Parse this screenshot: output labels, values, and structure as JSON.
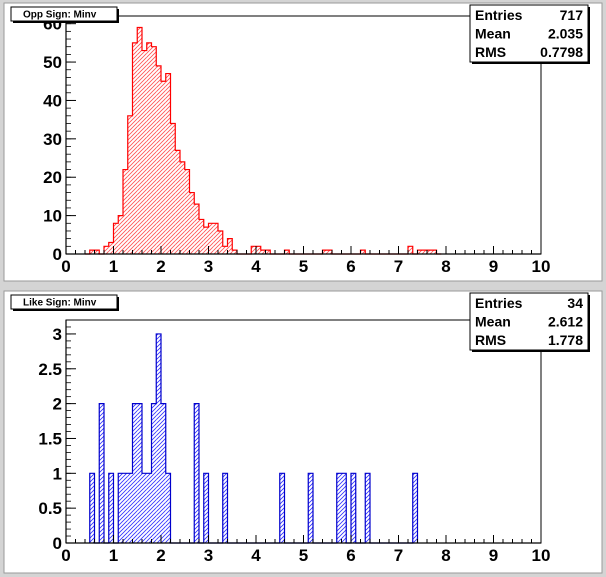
{
  "chart_data": [
    {
      "type": "bar",
      "histogram": true,
      "title": "Opp Sign: Minv",
      "color": "#ff0000",
      "fill_color": "#ffb0b0",
      "bin_width": 0.1,
      "xlim": [
        0,
        10
      ],
      "ylim": [
        0,
        62
      ],
      "xticks": [
        "0",
        "1",
        "2",
        "3",
        "4",
        "5",
        "6",
        "7",
        "8",
        "9",
        "10"
      ],
      "yticks": [
        "0",
        "10",
        "20",
        "30",
        "40",
        "50",
        "60"
      ],
      "x": [
        0.4,
        0.5,
        0.6,
        0.7,
        0.8,
        0.9,
        1.0,
        1.1,
        1.2,
        1.3,
        1.4,
        1.5,
        1.6,
        1.7,
        1.8,
        1.9,
        2.0,
        2.1,
        2.2,
        2.3,
        2.4,
        2.5,
        2.6,
        2.7,
        2.8,
        2.9,
        3.0,
        3.1,
        3.2,
        3.3,
        3.4,
        3.5,
        3.6,
        3.7,
        3.8,
        3.9,
        4.0,
        4.1,
        4.2,
        4.3,
        4.4,
        4.5,
        4.6,
        4.7,
        4.8,
        4.9,
        5.0,
        5.1,
        5.2,
        5.3,
        5.4,
        5.5,
        5.6,
        5.7,
        5.8,
        5.9,
        6.0,
        6.1,
        6.2,
        6.3,
        6.4,
        6.5,
        6.6,
        6.7,
        6.8,
        6.9,
        7.0,
        7.1,
        7.2,
        7.3,
        7.4,
        7.5,
        7.6,
        7.7,
        7.8
      ],
      "values": [
        0,
        1,
        1,
        0,
        2,
        3,
        8,
        10,
        22,
        36,
        55,
        59,
        53,
        55,
        54,
        49,
        45,
        47,
        34,
        27,
        24,
        22,
        16,
        13,
        9,
        7,
        8,
        8,
        6,
        2,
        4,
        1,
        0,
        0,
        0,
        2,
        2,
        1,
        1,
        0,
        0,
        0,
        1,
        0,
        0,
        0,
        0,
        0,
        0,
        0,
        1,
        1,
        0,
        0,
        0,
        0,
        0,
        0,
        1,
        0,
        0,
        0,
        0,
        0,
        0,
        0,
        0,
        0,
        2,
        0,
        1,
        1,
        1,
        1,
        0
      ],
      "stats": [
        {
          "label": "Entries",
          "value": "717"
        },
        {
          "label": "Mean",
          "value": "2.035"
        },
        {
          "label": "RMS",
          "value": "0.7798"
        }
      ]
    },
    {
      "type": "bar",
      "histogram": true,
      "title": "Like Sign: Minv",
      "color": "#0000cc",
      "fill_color": "#b0b0ff",
      "bin_width": 0.1,
      "xlim": [
        0,
        10
      ],
      "ylim": [
        0,
        3.2
      ],
      "xticks": [
        "0",
        "1",
        "2",
        "3",
        "4",
        "5",
        "6",
        "7",
        "8",
        "9",
        "10"
      ],
      "yticks": [
        "0",
        "0.5",
        "1",
        "1.5",
        "2",
        "2.5",
        "3"
      ],
      "x": [
        0.5,
        0.6,
        0.7,
        0.8,
        0.9,
        1.0,
        1.1,
        1.2,
        1.3,
        1.4,
        1.5,
        1.6,
        1.7,
        1.8,
        1.9,
        2.0,
        2.1,
        2.2,
        2.3,
        2.4,
        2.5,
        2.6,
        2.7,
        2.8,
        2.9,
        3.0,
        3.1,
        3.2,
        3.3,
        3.4,
        3.5,
        3.6,
        3.7,
        3.8,
        3.9,
        4.0,
        4.1,
        4.2,
        4.3,
        4.4,
        4.5,
        4.6,
        4.7,
        4.8,
        4.9,
        5.0,
        5.1,
        5.2,
        5.3,
        5.4,
        5.5,
        5.6,
        5.7,
        5.8,
        5.9,
        6.0,
        6.1,
        6.2,
        6.3,
        6.4,
        6.5,
        6.6,
        6.7,
        6.8,
        6.9,
        7.0,
        7.1,
        7.2,
        7.3
      ],
      "values": [
        1,
        0,
        2,
        0,
        1,
        0,
        1,
        1,
        1,
        2,
        2,
        1,
        1,
        2,
        3,
        2,
        1,
        0,
        0,
        0,
        0,
        0,
        2,
        0,
        1,
        0,
        0,
        0,
        1,
        0,
        0,
        0,
        0,
        0,
        0,
        0,
        0,
        0,
        0,
        0,
        1,
        0,
        0,
        0,
        0,
        0,
        1,
        0,
        0,
        0,
        0,
        0,
        1,
        1,
        0,
        1,
        0,
        0,
        1,
        0,
        0,
        0,
        0,
        0,
        0,
        0,
        0,
        0,
        1
      ],
      "stats": [
        {
          "label": "Entries",
          "value": "34"
        },
        {
          "label": "Mean",
          "value": "2.612"
        },
        {
          "label": "RMS",
          "value": "1.778"
        }
      ]
    }
  ]
}
